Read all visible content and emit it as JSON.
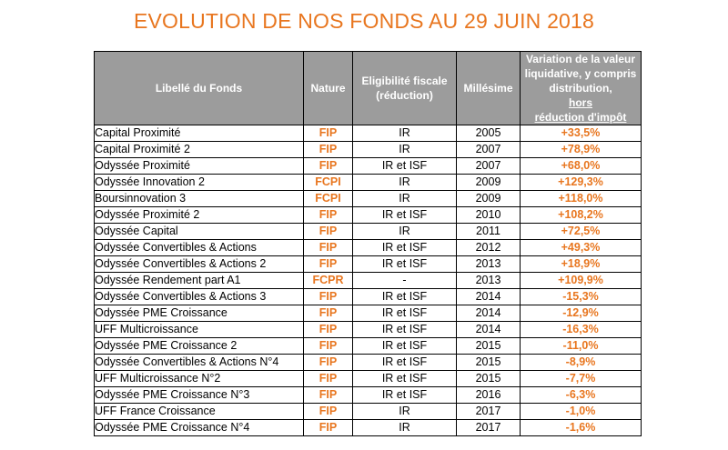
{
  "title": "EVOLUTION DE NOS FONDS AU 29 JUIN 2018",
  "colors": {
    "accent": "#e8761f",
    "header_bg": "#9c9c9c"
  },
  "headers": {
    "libelle": "Libellé du Fonds",
    "nature": "Nature",
    "eligibilite_line1": "Eligibilité fiscale",
    "eligibilite_line2": "(réduction)",
    "millesime": "Millésime",
    "variation_line1": "Variation de la valeur",
    "variation_line2": "liquidative, y compris",
    "variation_line3_a": "distribution, ",
    "variation_line3_b": "hors",
    "variation_line4": "réduction d'impôt"
  },
  "rows": [
    {
      "name": "Capital Proximité",
      "nature": "FIP",
      "elig": "IR",
      "year": "2005",
      "var": "+33,5%"
    },
    {
      "name": "Capital Proximité 2",
      "nature": "FIP",
      "elig": "IR",
      "year": "2007",
      "var": "+78,9%"
    },
    {
      "name": "Odyssée Proximité",
      "nature": "FIP",
      "elig": "IR et ISF",
      "year": "2007",
      "var": "+68,0%"
    },
    {
      "name": "Odyssée Innovation 2",
      "nature": "FCPI",
      "elig": "IR",
      "year": "2009",
      "var": "+129,3%"
    },
    {
      "name": "Boursinnovation 3",
      "nature": "FCPI",
      "elig": "IR",
      "year": "2009",
      "var": "+118,0%"
    },
    {
      "name": "Odyssée Proximité 2",
      "nature": "FIP",
      "elig": "IR et ISF",
      "year": "2010",
      "var": "+108,2%"
    },
    {
      "name": "Odyssée Capital",
      "nature": "FIP",
      "elig": "IR",
      "year": "2011",
      "var": "+72,5%"
    },
    {
      "name": "Odyssée Convertibles & Actions",
      "nature": "FIP",
      "elig": "IR et ISF",
      "year": "2012",
      "var": "+49,3%"
    },
    {
      "name": "Odyssée Convertibles & Actions 2",
      "nature": "FIP",
      "elig": "IR et ISF",
      "year": "2013",
      "var": "+18,9%"
    },
    {
      "name": "Odyssée Rendement part A1",
      "nature": "FCPR",
      "elig": "-",
      "year": "2013",
      "var": "+109,9%"
    },
    {
      "name": "Odyssée Convertibles & Actions 3",
      "nature": "FIP",
      "elig": "IR et ISF",
      "year": "2014",
      "var": "-15,3%"
    },
    {
      "name": "Odyssée PME Croissance",
      "nature": "FIP",
      "elig": "IR et ISF",
      "year": "2014",
      "var": "-12,9%"
    },
    {
      "name": "UFF Multicroissance",
      "nature": "FIP",
      "elig": "IR et ISF",
      "year": "2014",
      "var": "-16,3%"
    },
    {
      "name": "Odyssée PME Croissance 2",
      "nature": "FIP",
      "elig": "IR et ISF",
      "year": "2015",
      "var": "-11,0%"
    },
    {
      "name": "Odyssée Convertibles & Actions N°4",
      "nature": "FIP",
      "elig": "IR et ISF",
      "year": "2015",
      "var": "-8,9%"
    },
    {
      "name": "UFF Multicroissance N°2",
      "nature": "FIP",
      "elig": "IR et ISF",
      "year": "2015",
      "var": "-7,7%"
    },
    {
      "name": "Odyssée PME Croissance N°3",
      "nature": "FIP",
      "elig": "IR et ISF",
      "year": "2016",
      "var": "-6,3%"
    },
    {
      "name": "UFF France Croissance",
      "nature": "FIP",
      "elig": "IR",
      "year": "2017",
      "var": "-1,0%"
    },
    {
      "name": "Odyssée PME Croissance N°4",
      "nature": "FIP",
      "elig": "IR",
      "year": "2017",
      "var": "-1,6%"
    }
  ]
}
